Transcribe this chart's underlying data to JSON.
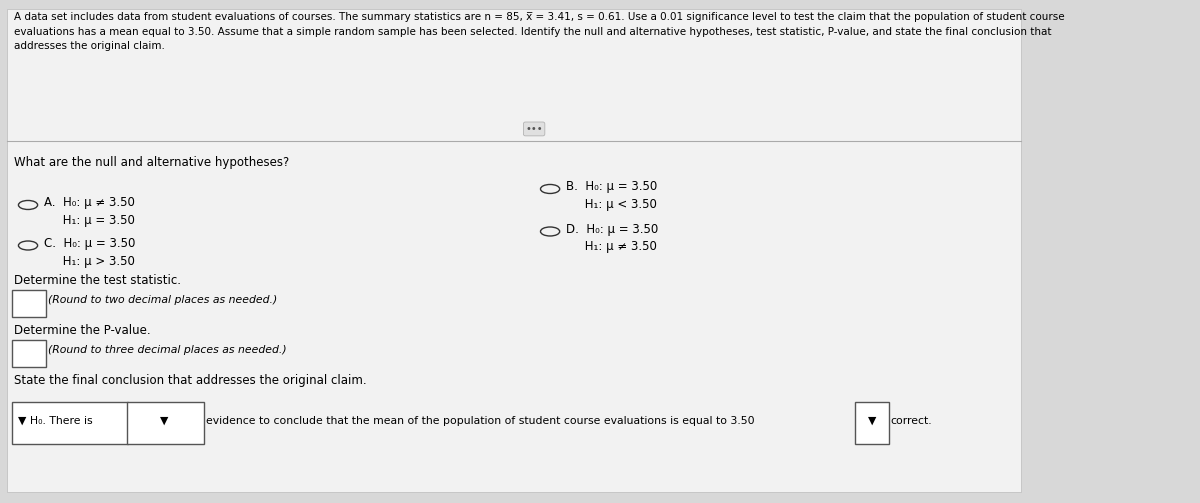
{
  "bg_color": "#d8d8d8",
  "panel_color": "#f0f0f0",
  "text_color": "#000000",
  "header_text": "A data set includes data from student evaluations of courses. The summary statistics are n = 85, x̅ = 3.41, s = 0.61. Use a 0.01 significance level to test the claim that the population of student course\nevaluations has a mean equal to 3.50. Assume that a simple random sample has been selected. Identify the null and alternative hypotheses, test statistic, P-value, and state the final conclusion that\naddresses the original claim.",
  "question1": "What are the null and alternative hypotheses?",
  "optA_line1": "A.  H₀: μ ≠ 3.50",
  "optA_line2": "     H₁: μ = 3.50",
  "optB_line1": "B.  H₀: μ = 3.50",
  "optB_line2": "     H₁: μ < 3.50",
  "optC_line1": "C.  H₀: μ = 3.50",
  "optC_line2": "     H₁: μ > 3.50",
  "optD_line1": "D.  H₀: μ = 3.50",
  "optD_line2": "     H₁: μ ≠ 3.50",
  "q2_label": "Determine the test statistic.",
  "q2_hint": "(Round to two decimal places as needed.)",
  "q3_label": "Determine the P-value.",
  "q3_hint": "(Round to three decimal places as needed.)",
  "q4_label": "State the final conclusion that addresses the original claim.",
  "q4_sentence": "evidence to conclude that the mean of the population of student course evaluations is equal to 3.50",
  "q4_end": "correct.",
  "q4_prefix": " H₀. There is",
  "divider_text": "•••"
}
